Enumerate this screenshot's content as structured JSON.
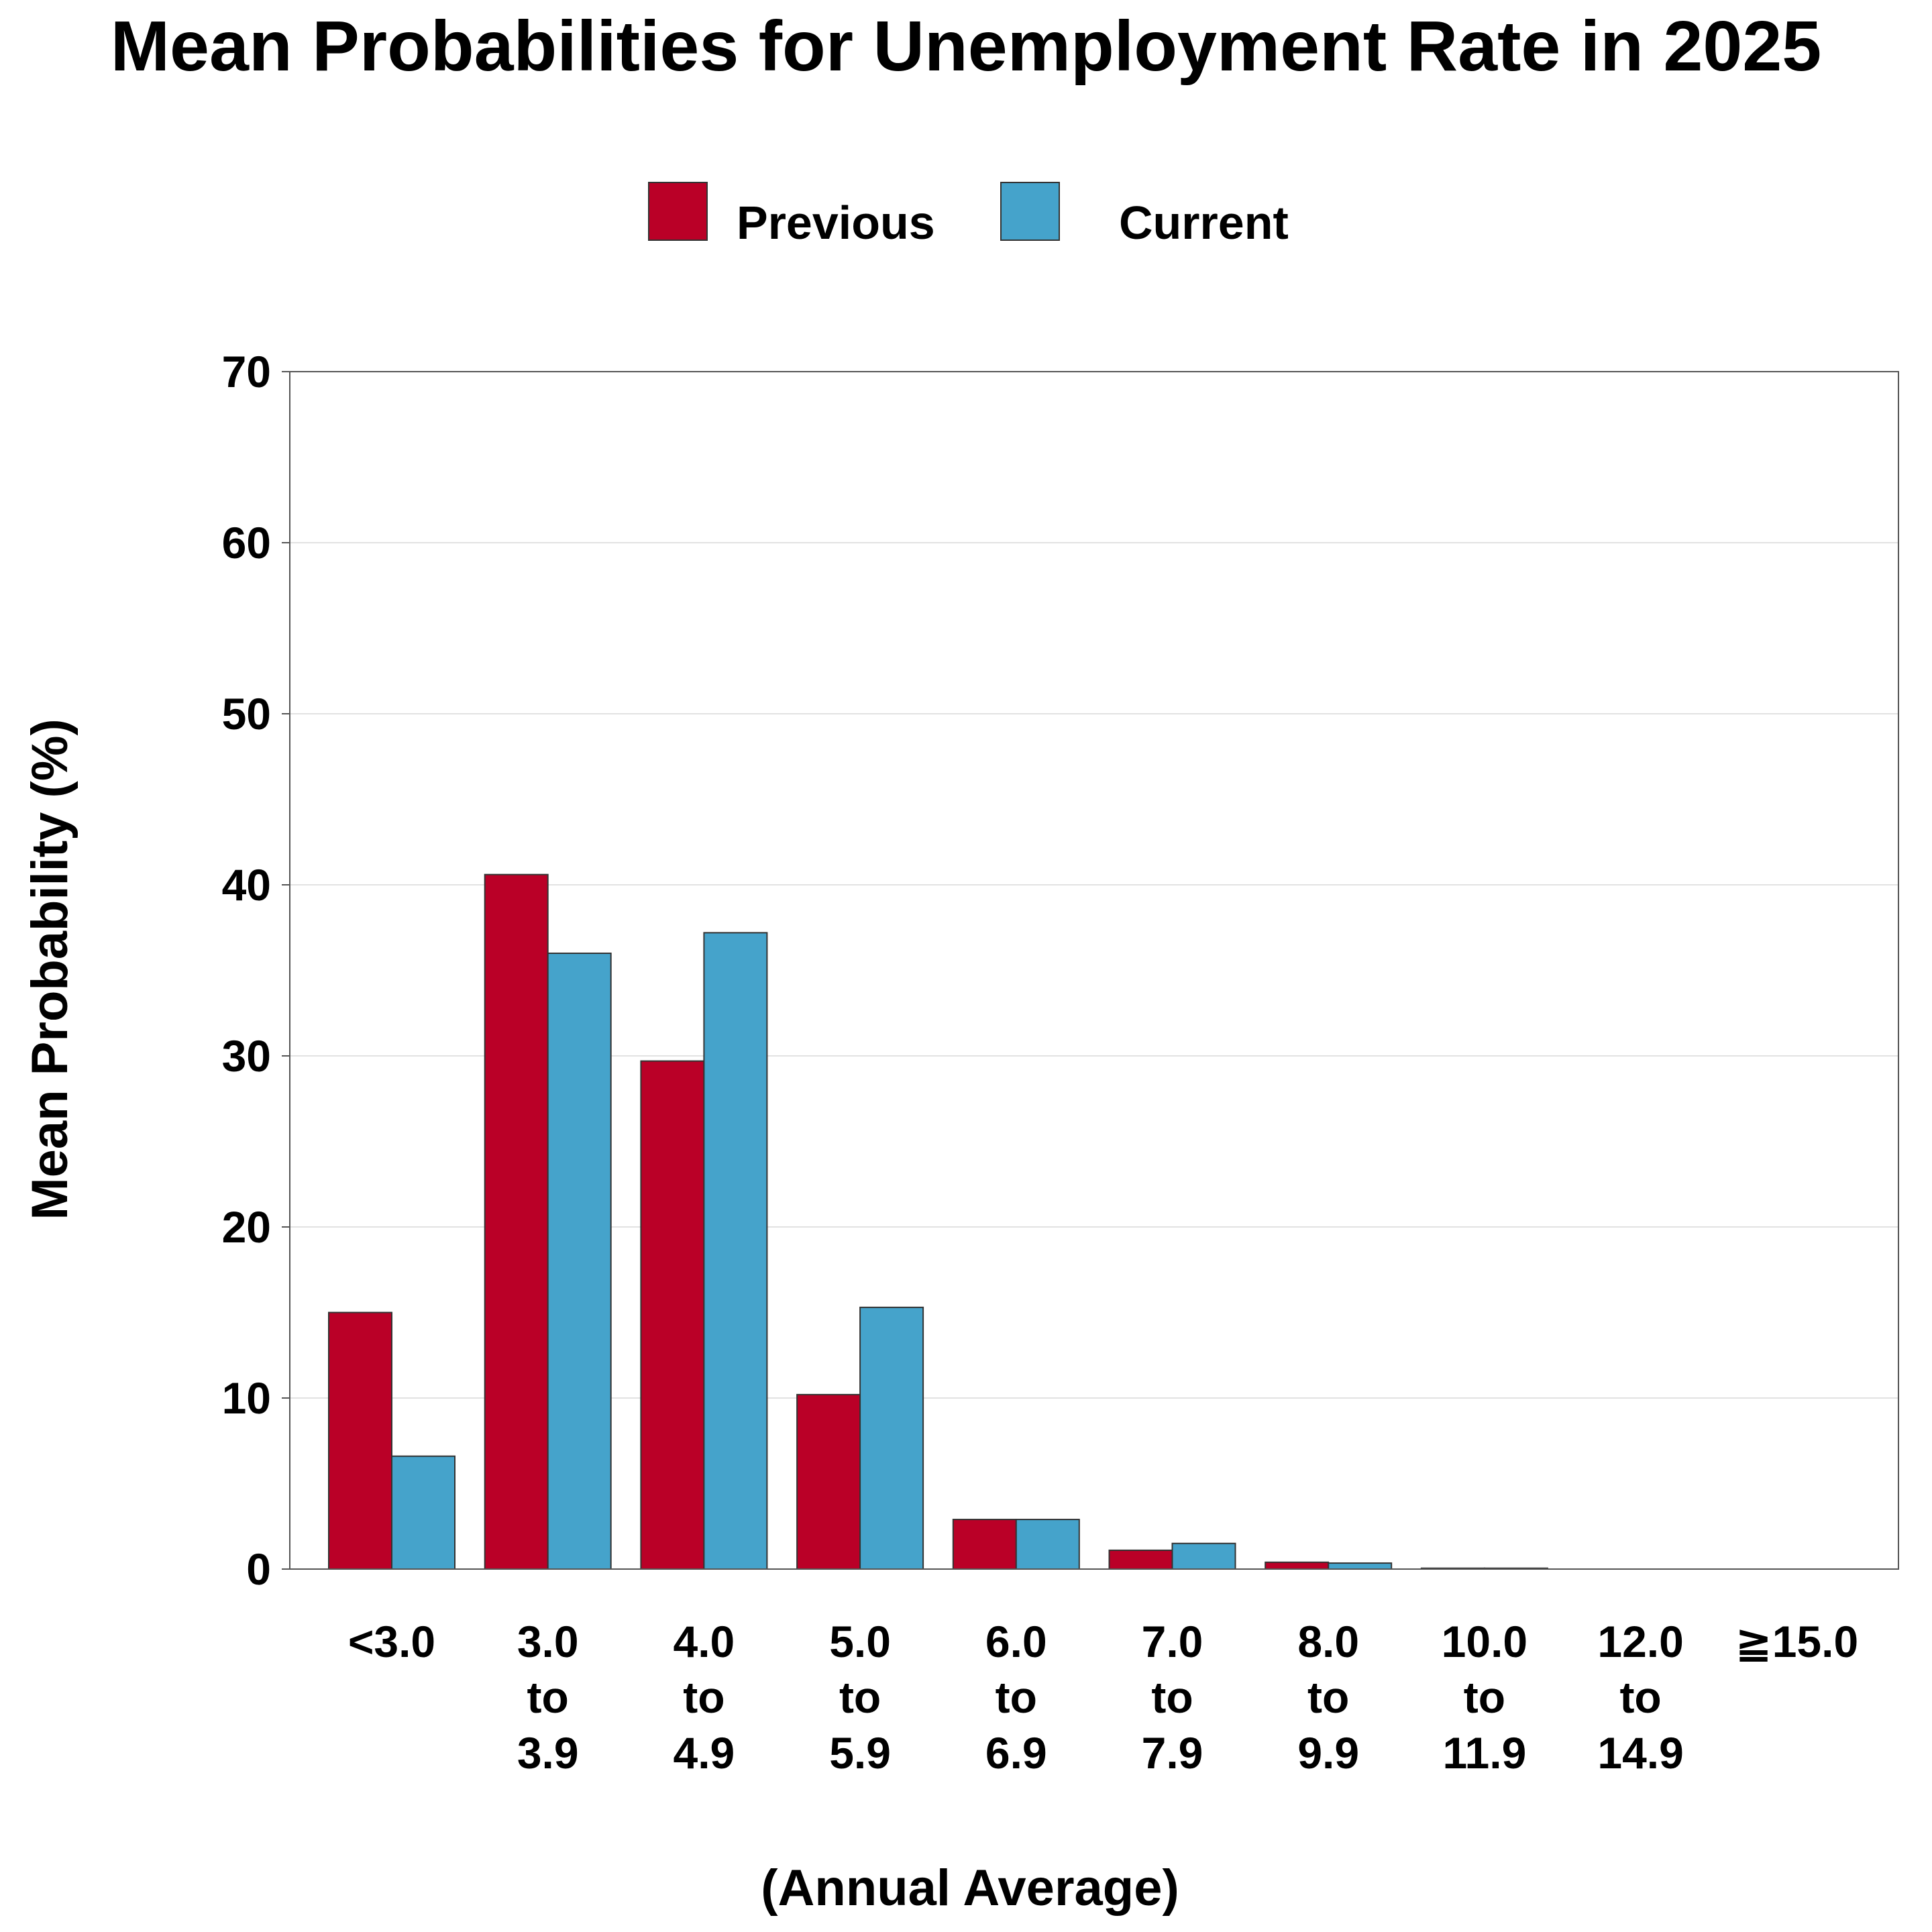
{
  "chart_data": {
    "type": "bar",
    "title": "Mean Probabilities for Unemployment Rate in 2025",
    "xlabel": "(Annual Average)",
    "ylabel": "Mean Probability (%)",
    "ylim": [
      0,
      70
    ],
    "yticks": [
      0,
      10,
      20,
      30,
      40,
      50,
      60,
      70
    ],
    "grid": true,
    "legend_position": "top-center",
    "categories": [
      "<3.0",
      "3.0 to 3.9",
      "4.0 to 4.9",
      "5.0 to 5.9",
      "6.0 to 6.9",
      "7.0 to 7.9",
      "8.0 to 9.9",
      "10.0 to 11.9",
      "12.0 to 14.9",
      "≧15.0"
    ],
    "category_lines": [
      [
        "<3.0"
      ],
      [
        "3.0",
        "to",
        "3.9"
      ],
      [
        "4.0",
        "to",
        "4.9"
      ],
      [
        "5.0",
        "to",
        "5.9"
      ],
      [
        "6.0",
        "to",
        "6.9"
      ],
      [
        "7.0",
        "to",
        "7.9"
      ],
      [
        "8.0",
        "to",
        "9.9"
      ],
      [
        "10.0",
        "to",
        "11.9"
      ],
      [
        "12.0",
        "to",
        "14.9"
      ],
      [
        "≧15.0"
      ]
    ],
    "series": [
      {
        "name": "Previous",
        "color": "#BA0027",
        "values": [
          15.0,
          40.6,
          29.7,
          10.2,
          2.9,
          1.1,
          0.4,
          0.05,
          0.0,
          0.0
        ]
      },
      {
        "name": "Current",
        "color": "#45A3CB",
        "values": [
          6.6,
          36.0,
          37.2,
          15.3,
          2.9,
          1.5,
          0.35,
          0.05,
          0.0,
          0.0
        ]
      }
    ]
  }
}
